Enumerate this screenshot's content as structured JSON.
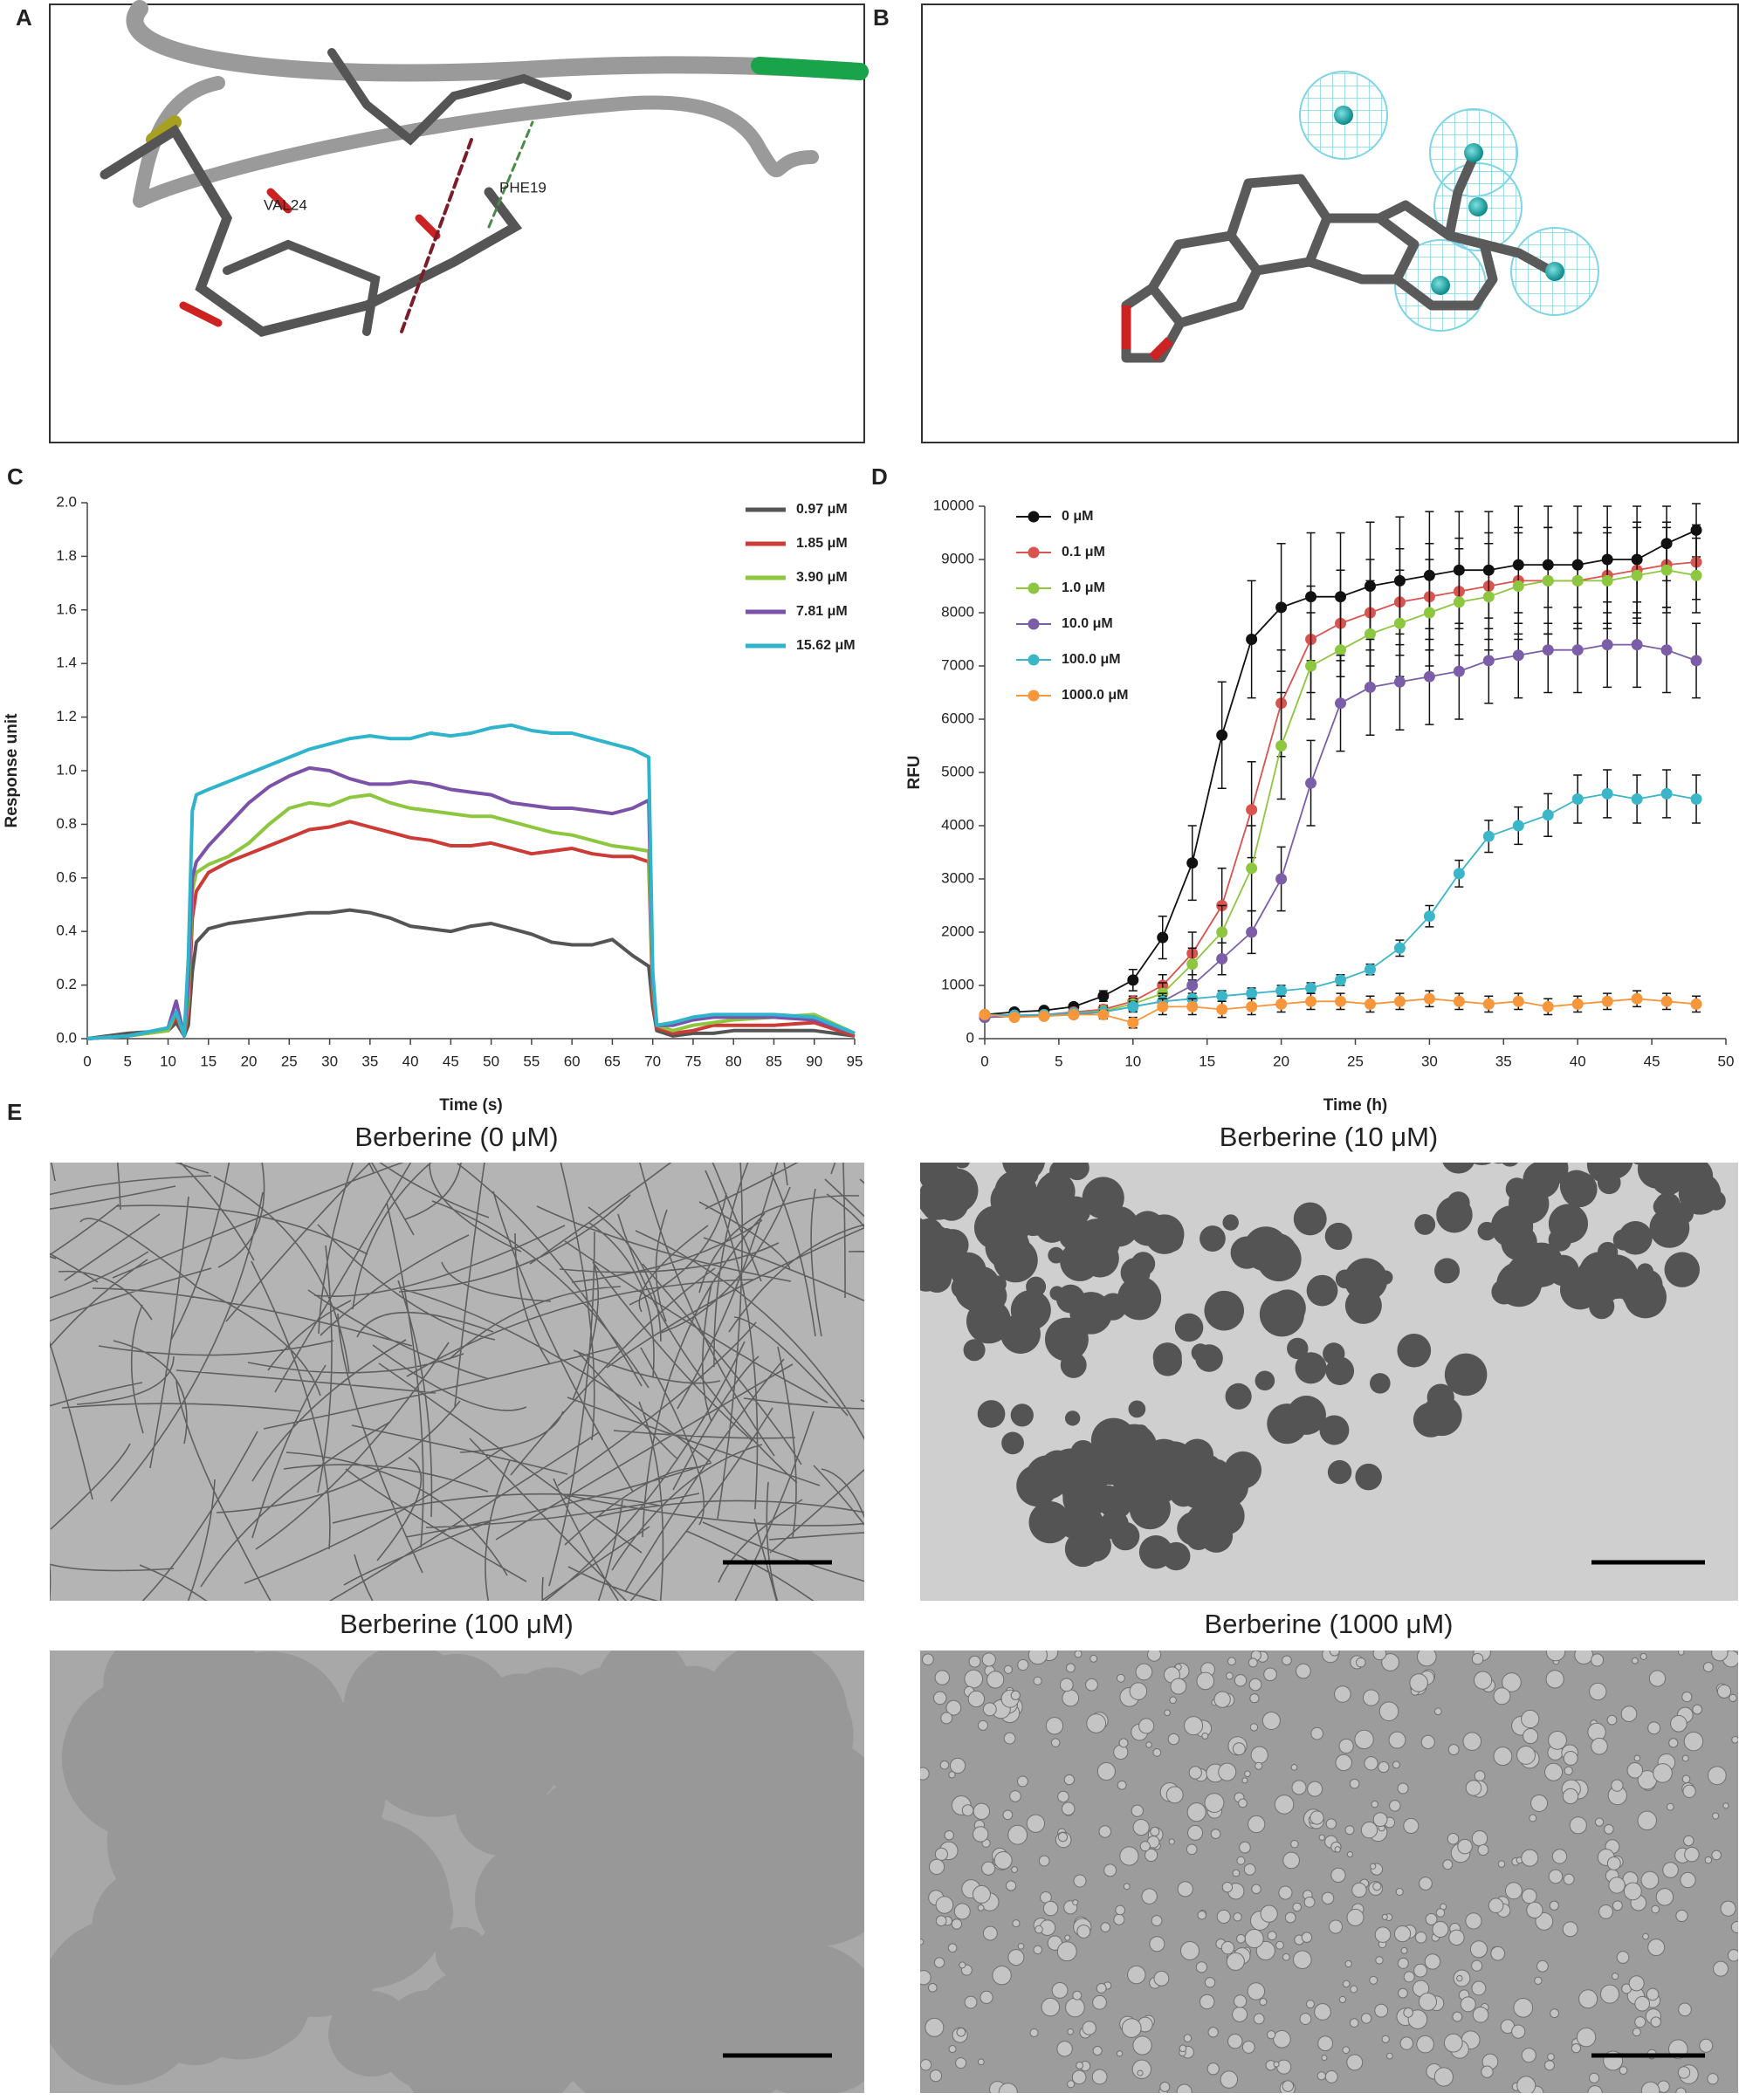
{
  "panels": {
    "letters": [
      "A",
      "B",
      "C",
      "D",
      "E"
    ],
    "residues": [
      "VAL24",
      "PHE19"
    ],
    "tem_titles": [
      "Berberine (0 μM)",
      "Berberine (10 μM)",
      "Berberine (100 μM)",
      "Berberine (1000 μM)"
    ]
  },
  "chart_data": [
    {
      "type": "line",
      "xlabel": "Time (s)",
      "ylabel": "Response unit",
      "legend": "upper right",
      "markers": false,
      "x": [
        0,
        5,
        10,
        11,
        12,
        12.5,
        13,
        13.5,
        15,
        17.5,
        20,
        22.5,
        25,
        27.5,
        30,
        32.5,
        35,
        37.5,
        40,
        42.5,
        45,
        47.5,
        50,
        52.5,
        55,
        57.5,
        60,
        62.5,
        65,
        67.5,
        69.5,
        70,
        70.5,
        72.5,
        75,
        77.5,
        80,
        85,
        90,
        95
      ],
      "xlim": [
        0,
        95
      ],
      "xticks": [
        0,
        5,
        10,
        15,
        20,
        25,
        30,
        35,
        40,
        45,
        50,
        55,
        60,
        65,
        70,
        75,
        80,
        85,
        90,
        95
      ],
      "ylim": [
        0,
        2
      ],
      "yticks": [
        {
          "value": 0,
          "label": "0.0"
        },
        0.2,
        0.4,
        0.6,
        0.8,
        {
          "value": 1,
          "label": "1.0"
        },
        1.2,
        1.4,
        1.6,
        1.8,
        {
          "value": 2,
          "label": "2.0"
        }
      ],
      "series": [
        {
          "name": "0.97 μM",
          "color": "#555555",
          "values": [
            0,
            0.02,
            0.03,
            0.06,
            0.01,
            0.05,
            0.25,
            0.36,
            0.41,
            0.43,
            0.44,
            0.45,
            0.46,
            0.47,
            0.47,
            0.48,
            0.47,
            0.45,
            0.42,
            0.41,
            0.4,
            0.42,
            0.43,
            0.41,
            0.39,
            0.36,
            0.35,
            0.35,
            0.37,
            0.31,
            0.27,
            0.12,
            0.03,
            0.01,
            0.02,
            0.02,
            0.03,
            0.03,
            0.03,
            0.01
          ]
        },
        {
          "name": "1.85 μM",
          "color": "#cc3b35",
          "values": [
            0,
            0.01,
            0.03,
            0.08,
            0.01,
            0.1,
            0.45,
            0.55,
            0.62,
            0.66,
            0.69,
            0.72,
            0.75,
            0.78,
            0.79,
            0.81,
            0.79,
            0.77,
            0.75,
            0.74,
            0.72,
            0.72,
            0.73,
            0.71,
            0.69,
            0.7,
            0.71,
            0.69,
            0.68,
            0.68,
            0.66,
            0.15,
            0.04,
            0.02,
            0.03,
            0.05,
            0.05,
            0.05,
            0.06,
            0.01
          ]
        },
        {
          "name": "3.90 μM",
          "color": "#8dc63f",
          "values": [
            0,
            0.01,
            0.03,
            0.1,
            0.01,
            0.15,
            0.55,
            0.62,
            0.65,
            0.68,
            0.73,
            0.8,
            0.86,
            0.88,
            0.87,
            0.9,
            0.91,
            0.88,
            0.86,
            0.85,
            0.84,
            0.83,
            0.83,
            0.81,
            0.79,
            0.77,
            0.76,
            0.74,
            0.72,
            0.71,
            0.7,
            0.2,
            0.05,
            0.03,
            0.05,
            0.06,
            0.07,
            0.08,
            0.09,
            0.02
          ]
        },
        {
          "name": "7.81 μM",
          "color": "#7b52a8",
          "values": [
            0,
            0.01,
            0.04,
            0.14,
            0.01,
            0.2,
            0.6,
            0.66,
            0.72,
            0.8,
            0.88,
            0.94,
            0.98,
            1.01,
            1.0,
            0.97,
            0.95,
            0.95,
            0.96,
            0.95,
            0.93,
            0.92,
            0.91,
            0.88,
            0.87,
            0.86,
            0.86,
            0.85,
            0.84,
            0.86,
            0.89,
            0.22,
            0.05,
            0.05,
            0.07,
            0.08,
            0.08,
            0.08,
            0.07,
            0.02
          ]
        },
        {
          "name": "15.62 μM",
          "color": "#2fb4cc",
          "values": [
            0,
            0.01,
            0.04,
            0.1,
            0.01,
            0.3,
            0.85,
            0.91,
            0.93,
            0.96,
            0.99,
            1.02,
            1.05,
            1.08,
            1.1,
            1.12,
            1.13,
            1.12,
            1.12,
            1.14,
            1.13,
            1.14,
            1.16,
            1.17,
            1.15,
            1.14,
            1.14,
            1.12,
            1.1,
            1.08,
            1.05,
            0.25,
            0.05,
            0.06,
            0.08,
            0.09,
            0.09,
            0.09,
            0.08,
            0.02
          ]
        }
      ]
    },
    {
      "type": "line",
      "xlabel": "Time (h)",
      "ylabel": "RFU",
      "legend": "upper left",
      "markers": true,
      "x": [
        0,
        2,
        4,
        6,
        8,
        10,
        12,
        14,
        16,
        18,
        20,
        22,
        24,
        26,
        28,
        30,
        32,
        34,
        36,
        38,
        40,
        42,
        44,
        46,
        48
      ],
      "xlim": [
        0,
        50
      ],
      "xticks": [
        0,
        5,
        10,
        15,
        20,
        25,
        30,
        35,
        40,
        45,
        50
      ],
      "ylim": [
        0,
        10000
      ],
      "yticks": [
        0,
        1000,
        2000,
        3000,
        4000,
        5000,
        6000,
        7000,
        8000,
        9000,
        10000
      ],
      "series": [
        {
          "name": "0 μM",
          "color": "#111111",
          "values": [
            450,
            500,
            530,
            600,
            800,
            1100,
            1900,
            3300,
            5700,
            7500,
            8100,
            8300,
            8300,
            8500,
            8600,
            8700,
            8800,
            8800,
            8900,
            8900,
            8900,
            9000,
            9000,
            9300,
            9550
          ],
          "errors": [
            50,
            50,
            50,
            60,
            100,
            200,
            400,
            700,
            1000,
            1100,
            1200,
            1200,
            1200,
            1200,
            1200,
            1200,
            1100,
            1100,
            1100,
            1100,
            1100,
            1000,
            1000,
            700,
            500
          ]
        },
        {
          "name": "0.1 μM",
          "color": "#d9534f",
          "values": [
            450,
            430,
            450,
            500,
            550,
            700,
            1000,
            1600,
            2500,
            4300,
            6300,
            7500,
            7800,
            8000,
            8200,
            8300,
            8400,
            8500,
            8600,
            8600,
            8600,
            8700,
            8800,
            8900,
            8950
          ],
          "errors": [
            50,
            50,
            50,
            60,
            80,
            100,
            200,
            400,
            700,
            900,
            1000,
            1000,
            1000,
            1000,
            1000,
            1000,
            1000,
            1000,
            1000,
            1000,
            900,
            900,
            900,
            800,
            700
          ]
        },
        {
          "name": "1.0 μM",
          "color": "#8dc63f",
          "values": [
            400,
            420,
            430,
            480,
            520,
            650,
            850,
            1400,
            2000,
            3200,
            5500,
            7000,
            7300,
            7600,
            7800,
            8000,
            8200,
            8300,
            8500,
            8600,
            8600,
            8600,
            8700,
            8800,
            8700
          ],
          "errors": [
            50,
            50,
            50,
            60,
            80,
            100,
            200,
            300,
            500,
            800,
            1000,
            1000,
            1000,
            1000,
            1000,
            1000,
            1000,
            1000,
            1000,
            1000,
            900,
            900,
            900,
            800,
            700
          ]
        },
        {
          "name": "10.0 μM",
          "color": "#7b5ea7",
          "values": [
            400,
            420,
            430,
            450,
            500,
            600,
            700,
            1000,
            1500,
            2000,
            3000,
            4800,
            6300,
            6600,
            6700,
            6800,
            6900,
            7100,
            7200,
            7300,
            7300,
            7400,
            7400,
            7300,
            7100
          ],
          "errors": [
            50,
            50,
            50,
            60,
            80,
            100,
            150,
            200,
            300,
            400,
            600,
            800,
            900,
            900,
            900,
            900,
            900,
            800,
            800,
            800,
            800,
            800,
            800,
            800,
            700
          ]
        },
        {
          "name": "100.0 μM",
          "color": "#3ab6c8",
          "values": [
            450,
            440,
            450,
            480,
            500,
            600,
            700,
            750,
            800,
            850,
            900,
            950,
            1100,
            1300,
            1700,
            2300,
            3100,
            3800,
            4000,
            4200,
            4500,
            4600,
            4500,
            4600,
            4500
          ],
          "errors": [
            50,
            50,
            50,
            50,
            60,
            80,
            100,
            100,
            100,
            100,
            100,
            100,
            100,
            100,
            150,
            200,
            250,
            300,
            350,
            400,
            450,
            450,
            450,
            450,
            450
          ]
        },
        {
          "name": "1000.0 μM",
          "color": "#f7963b",
          "values": [
            450,
            400,
            420,
            450,
            450,
            300,
            600,
            600,
            550,
            600,
            650,
            700,
            700,
            650,
            700,
            750,
            700,
            650,
            700,
            600,
            650,
            700,
            750,
            700,
            650
          ],
          "errors": [
            50,
            50,
            50,
            50,
            80,
            100,
            150,
            150,
            150,
            150,
            150,
            150,
            150,
            150,
            150,
            150,
            150,
            150,
            150,
            150,
            150,
            150,
            150,
            150,
            150
          ]
        }
      ]
    }
  ]
}
